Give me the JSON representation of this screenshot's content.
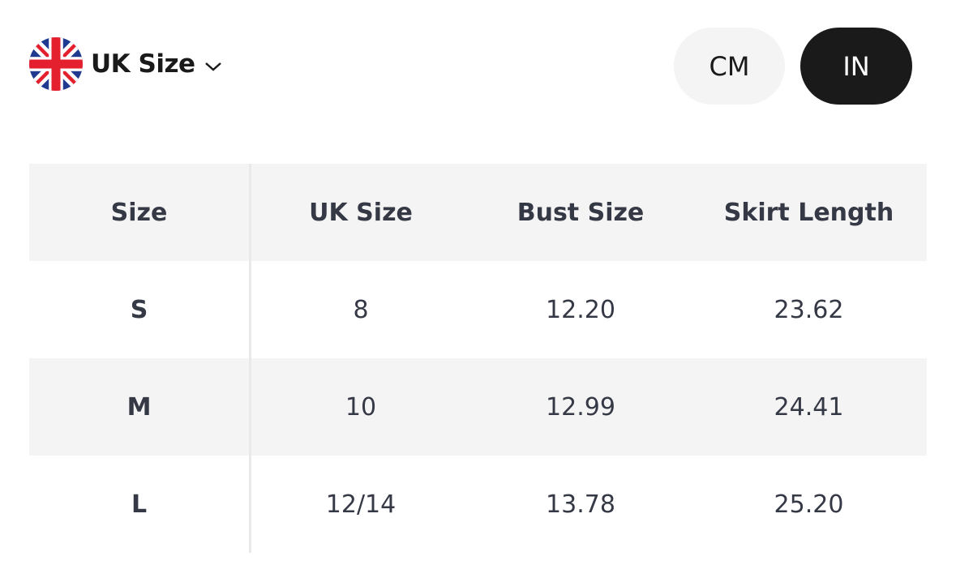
{
  "region_selector": {
    "label": "UK Size",
    "flag_icon": "uk-flag-icon",
    "chevron_icon": "chevron-down-icon"
  },
  "unit_toggle": {
    "options": [
      {
        "label": "CM",
        "selected": false
      },
      {
        "label": "IN",
        "selected": true
      }
    ],
    "selected_color": "#1a1a1a"
  },
  "table": {
    "headers": [
      "Size",
      "UK Size",
      "Bust Size",
      "Skirt Length"
    ],
    "rows": [
      [
        "S",
        "8",
        "12.20",
        "23.62"
      ],
      [
        "M",
        "10",
        "12.99",
        "24.41"
      ],
      [
        "L",
        "12/14",
        "13.78",
        "25.20"
      ]
    ]
  }
}
